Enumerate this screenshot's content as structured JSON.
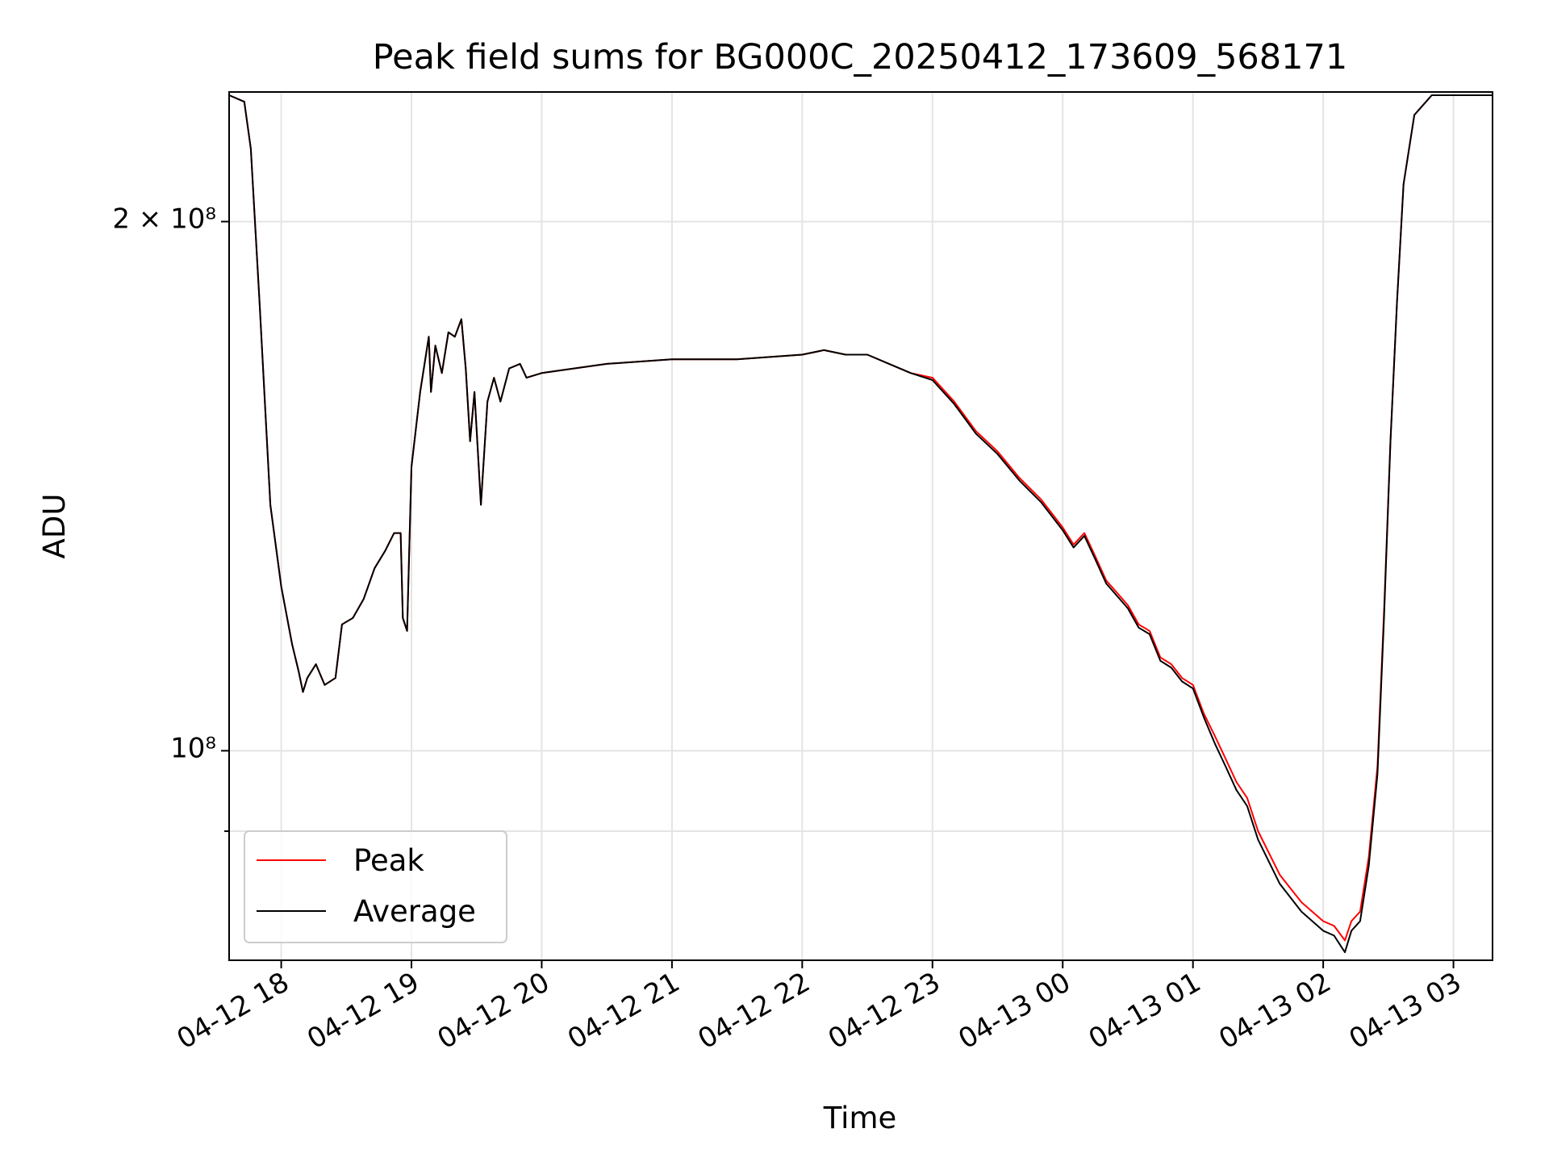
{
  "chart_data": {
    "type": "line",
    "title": "Peak field sums for BG000C_20250412_173609_568171",
    "xlabel": "Time",
    "ylabel": "ADU",
    "yscale": "log",
    "ylim": [
      76000000,
      237000000
    ],
    "xlim": [
      "2025-04-12 17:36",
      "2025-04-13 03:18"
    ],
    "grid": true,
    "legend_position": "lower-left",
    "x_ticks": [
      {
        "value": "2025-04-12 18:00",
        "label": "04-12 18"
      },
      {
        "value": "2025-04-12 19:00",
        "label": "04-12 19"
      },
      {
        "value": "2025-04-12 20:00",
        "label": "04-12 20"
      },
      {
        "value": "2025-04-12 21:00",
        "label": "04-12 21"
      },
      {
        "value": "2025-04-12 22:00",
        "label": "04-12 22"
      },
      {
        "value": "2025-04-12 23:00",
        "label": "04-12 23"
      },
      {
        "value": "2025-04-13 00:00",
        "label": "04-13 00"
      },
      {
        "value": "2025-04-13 01:00",
        "label": "04-13 01"
      },
      {
        "value": "2025-04-13 02:00",
        "label": "04-13 02"
      },
      {
        "value": "2025-04-13 03:00",
        "label": "04-13 03"
      }
    ],
    "y_ticks": [
      {
        "value": 200000000,
        "label": "2 × 10⁸"
      },
      {
        "value": 100000000,
        "label": "10⁸"
      }
    ],
    "y_minor_gridlines": [
      90000000
    ],
    "series": [
      {
        "name": "Peak",
        "color": "#ff0000",
        "points": [
          [
            "2025-04-12 17:36",
            236000000
          ],
          [
            "2025-04-12 17:43",
            234000000
          ],
          [
            "2025-04-12 17:46",
            220000000
          ],
          [
            "2025-04-12 17:50",
            180000000
          ],
          [
            "2025-04-12 17:55",
            138000000
          ],
          [
            "2025-04-12 18:00",
            124000000
          ],
          [
            "2025-04-12 18:05",
            115000000
          ],
          [
            "2025-04-12 18:08",
            111000000
          ],
          [
            "2025-04-12 18:10",
            108000000
          ],
          [
            "2025-04-12 18:12",
            110000000
          ],
          [
            "2025-04-12 18:16",
            112000000
          ],
          [
            "2025-04-12 18:20",
            109000000
          ],
          [
            "2025-04-12 18:25",
            110000000
          ],
          [
            "2025-04-12 18:28",
            118000000
          ],
          [
            "2025-04-12 18:33",
            119000000
          ],
          [
            "2025-04-12 18:38",
            122000000
          ],
          [
            "2025-04-12 18:43",
            127000000
          ],
          [
            "2025-04-12 18:48",
            130000000
          ],
          [
            "2025-04-12 18:52",
            133000000
          ],
          [
            "2025-04-12 18:55",
            133000000
          ],
          [
            "2025-04-12 18:56",
            119000000
          ],
          [
            "2025-04-12 18:58",
            117000000
          ],
          [
            "2025-04-12 19:00",
            145000000
          ],
          [
            "2025-04-12 19:04",
            160000000
          ],
          [
            "2025-04-12 19:08",
            172000000
          ],
          [
            "2025-04-12 19:09",
            160000000
          ],
          [
            "2025-04-12 19:11",
            170000000
          ],
          [
            "2025-04-12 19:14",
            164000000
          ],
          [
            "2025-04-12 19:17",
            173000000
          ],
          [
            "2025-04-12 19:20",
            172000000
          ],
          [
            "2025-04-12 19:23",
            176000000
          ],
          [
            "2025-04-12 19:25",
            165000000
          ],
          [
            "2025-04-12 19:27",
            150000000
          ],
          [
            "2025-04-12 19:29",
            160000000
          ],
          [
            "2025-04-12 19:32",
            138000000
          ],
          [
            "2025-04-12 19:35",
            158000000
          ],
          [
            "2025-04-12 19:38",
            163000000
          ],
          [
            "2025-04-12 19:41",
            158000000
          ],
          [
            "2025-04-12 19:45",
            165000000
          ],
          [
            "2025-04-12 19:50",
            166000000
          ],
          [
            "2025-04-12 19:53",
            163000000
          ],
          [
            "2025-04-12 20:00",
            164000000
          ],
          [
            "2025-04-12 20:30",
            166000000
          ],
          [
            "2025-04-12 21:00",
            167000000
          ],
          [
            "2025-04-12 21:30",
            167000000
          ],
          [
            "2025-04-12 22:00",
            168000000
          ],
          [
            "2025-04-12 22:10",
            169000000
          ],
          [
            "2025-04-12 22:20",
            168000000
          ],
          [
            "2025-04-12 22:30",
            168000000
          ],
          [
            "2025-04-12 22:40",
            166000000
          ],
          [
            "2025-04-12 22:50",
            164000000
          ],
          [
            "2025-04-12 23:00",
            163000000
          ],
          [
            "2025-04-12 23:10",
            158000000
          ],
          [
            "2025-04-12 23:20",
            152000000
          ],
          [
            "2025-04-12 23:30",
            148000000
          ],
          [
            "2025-04-12 23:40",
            143000000
          ],
          [
            "2025-04-12 23:50",
            139000000
          ],
          [
            "2025-04-13 00:00",
            134000000
          ],
          [
            "2025-04-13 00:05",
            131000000
          ],
          [
            "2025-04-13 00:10",
            133000000
          ],
          [
            "2025-04-13 00:15",
            129000000
          ],
          [
            "2025-04-13 00:20",
            125000000
          ],
          [
            "2025-04-13 00:25",
            123000000
          ],
          [
            "2025-04-13 00:30",
            121000000
          ],
          [
            "2025-04-13 00:35",
            118000000
          ],
          [
            "2025-04-13 00:40",
            117000000
          ],
          [
            "2025-04-13 00:45",
            113000000
          ],
          [
            "2025-04-13 00:50",
            112000000
          ],
          [
            "2025-04-13 00:55",
            110000000
          ],
          [
            "2025-04-13 01:00",
            109000000
          ],
          [
            "2025-04-13 01:05",
            105000000
          ],
          [
            "2025-04-13 01:10",
            102000000
          ],
          [
            "2025-04-13 01:15",
            99000000
          ],
          [
            "2025-04-13 01:20",
            96000000
          ],
          [
            "2025-04-13 01:25",
            94000000
          ],
          [
            "2025-04-13 01:30",
            90000000
          ],
          [
            "2025-04-13 01:40",
            85000000
          ],
          [
            "2025-04-13 01:50",
            82000000
          ],
          [
            "2025-04-13 02:00",
            80000000
          ],
          [
            "2025-04-13 02:05",
            79500000
          ],
          [
            "2025-04-13 02:10",
            78000000
          ],
          [
            "2025-04-13 02:13",
            80000000
          ],
          [
            "2025-04-13 02:17",
            81000000
          ],
          [
            "2025-04-13 02:21",
            87000000
          ],
          [
            "2025-04-13 02:25",
            98000000
          ],
          [
            "2025-04-13 02:28",
            120000000
          ],
          [
            "2025-04-13 02:31",
            150000000
          ],
          [
            "2025-04-13 02:34",
            180000000
          ],
          [
            "2025-04-13 02:37",
            210000000
          ],
          [
            "2025-04-13 02:42",
            230000000
          ],
          [
            "2025-04-13 02:50",
            236000000
          ],
          [
            "2025-04-13 03:00",
            236000000
          ],
          [
            "2025-04-13 03:18",
            236000000
          ]
        ]
      },
      {
        "name": "Average",
        "color": "#000000",
        "points": [
          [
            "2025-04-12 17:36",
            236000000
          ],
          [
            "2025-04-12 17:43",
            234000000
          ],
          [
            "2025-04-12 17:46",
            220000000
          ],
          [
            "2025-04-12 17:50",
            180000000
          ],
          [
            "2025-04-12 17:55",
            138000000
          ],
          [
            "2025-04-12 18:00",
            124000000
          ],
          [
            "2025-04-12 18:05",
            115000000
          ],
          [
            "2025-04-12 18:08",
            111000000
          ],
          [
            "2025-04-12 18:10",
            108000000
          ],
          [
            "2025-04-12 18:12",
            110000000
          ],
          [
            "2025-04-12 18:16",
            112000000
          ],
          [
            "2025-04-12 18:20",
            109000000
          ],
          [
            "2025-04-12 18:25",
            110000000
          ],
          [
            "2025-04-12 18:28",
            118000000
          ],
          [
            "2025-04-12 18:33",
            119000000
          ],
          [
            "2025-04-12 18:38",
            122000000
          ],
          [
            "2025-04-12 18:43",
            127000000
          ],
          [
            "2025-04-12 18:48",
            130000000
          ],
          [
            "2025-04-12 18:52",
            133000000
          ],
          [
            "2025-04-12 18:55",
            133000000
          ],
          [
            "2025-04-12 18:56",
            119000000
          ],
          [
            "2025-04-12 18:58",
            117000000
          ],
          [
            "2025-04-12 19:00",
            145000000
          ],
          [
            "2025-04-12 19:04",
            160000000
          ],
          [
            "2025-04-12 19:08",
            172000000
          ],
          [
            "2025-04-12 19:09",
            160000000
          ],
          [
            "2025-04-12 19:11",
            170000000
          ],
          [
            "2025-04-12 19:14",
            164000000
          ],
          [
            "2025-04-12 19:17",
            173000000
          ],
          [
            "2025-04-12 19:20",
            172000000
          ],
          [
            "2025-04-12 19:23",
            176000000
          ],
          [
            "2025-04-12 19:25",
            165000000
          ],
          [
            "2025-04-12 19:27",
            150000000
          ],
          [
            "2025-04-12 19:29",
            160000000
          ],
          [
            "2025-04-12 19:32",
            138000000
          ],
          [
            "2025-04-12 19:35",
            158000000
          ],
          [
            "2025-04-12 19:38",
            163000000
          ],
          [
            "2025-04-12 19:41",
            158000000
          ],
          [
            "2025-04-12 19:45",
            165000000
          ],
          [
            "2025-04-12 19:50",
            166000000
          ],
          [
            "2025-04-12 19:53",
            163000000
          ],
          [
            "2025-04-12 20:00",
            164000000
          ],
          [
            "2025-04-12 20:30",
            166000000
          ],
          [
            "2025-04-12 21:00",
            167000000
          ],
          [
            "2025-04-12 21:30",
            167000000
          ],
          [
            "2025-04-12 22:00",
            168000000
          ],
          [
            "2025-04-12 22:10",
            169000000
          ],
          [
            "2025-04-12 22:20",
            168000000
          ],
          [
            "2025-04-12 22:30",
            168000000
          ],
          [
            "2025-04-12 22:40",
            166000000
          ],
          [
            "2025-04-12 22:50",
            164000000
          ],
          [
            "2025-04-12 23:00",
            162500000
          ],
          [
            "2025-04-12 23:10",
            157500000
          ],
          [
            "2025-04-12 23:20",
            151500000
          ],
          [
            "2025-04-12 23:30",
            147500000
          ],
          [
            "2025-04-12 23:40",
            142500000
          ],
          [
            "2025-04-12 23:50",
            138500000
          ],
          [
            "2025-04-13 00:00",
            133500000
          ],
          [
            "2025-04-13 00:05",
            130500000
          ],
          [
            "2025-04-13 00:10",
            132500000
          ],
          [
            "2025-04-13 00:15",
            128500000
          ],
          [
            "2025-04-13 00:20",
            124500000
          ],
          [
            "2025-04-13 00:25",
            122500000
          ],
          [
            "2025-04-13 00:30",
            120500000
          ],
          [
            "2025-04-13 00:35",
            117500000
          ],
          [
            "2025-04-13 00:40",
            116500000
          ],
          [
            "2025-04-13 00:45",
            112500000
          ],
          [
            "2025-04-13 00:50",
            111500000
          ],
          [
            "2025-04-13 00:55",
            109500000
          ],
          [
            "2025-04-13 01:00",
            108500000
          ],
          [
            "2025-04-13 01:05",
            104500000
          ],
          [
            "2025-04-13 01:10",
            101000000
          ],
          [
            "2025-04-13 01:15",
            98000000
          ],
          [
            "2025-04-13 01:20",
            95000000
          ],
          [
            "2025-04-13 01:25",
            93000000
          ],
          [
            "2025-04-13 01:30",
            89000000
          ],
          [
            "2025-04-13 01:40",
            84000000
          ],
          [
            "2025-04-13 01:50",
            81000000
          ],
          [
            "2025-04-13 02:00",
            79000000
          ],
          [
            "2025-04-13 02:05",
            78500000
          ],
          [
            "2025-04-13 02:10",
            76800000
          ],
          [
            "2025-04-13 02:13",
            79000000
          ],
          [
            "2025-04-13 02:17",
            80000000
          ],
          [
            "2025-04-13 02:21",
            86000000
          ],
          [
            "2025-04-13 02:25",
            97000000
          ],
          [
            "2025-04-13 02:28",
            119000000
          ],
          [
            "2025-04-13 02:31",
            150000000
          ],
          [
            "2025-04-13 02:34",
            180000000
          ],
          [
            "2025-04-13 02:37",
            210000000
          ],
          [
            "2025-04-13 02:42",
            230000000
          ],
          [
            "2025-04-13 02:50",
            236000000
          ],
          [
            "2025-04-13 03:00",
            236000000
          ],
          [
            "2025-04-13 03:18",
            236000000
          ]
        ]
      }
    ]
  }
}
